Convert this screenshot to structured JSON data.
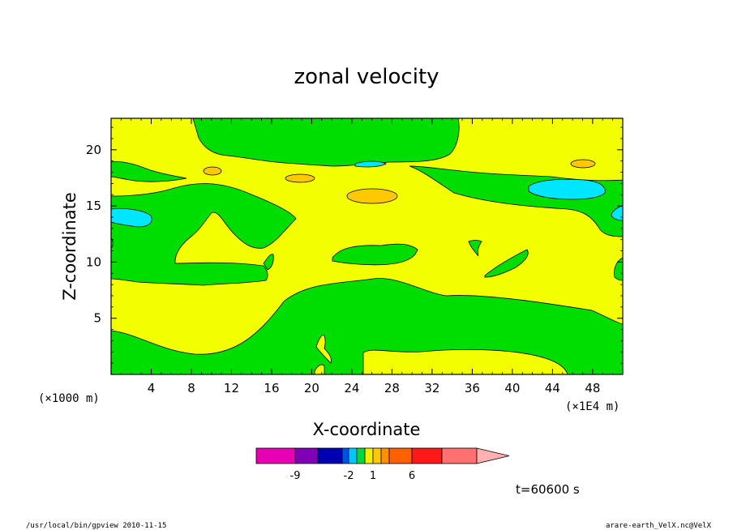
{
  "chart_data": {
    "type": "heatmap",
    "title": "zonal velocity",
    "xlabel": "X-coordinate",
    "ylabel": "Z-coordinate",
    "x_unit_label": "(×1E4 m)",
    "y_unit_label": "(×1000 m)",
    "xlim": [
      0,
      51
    ],
    "ylim": [
      0,
      22.8
    ],
    "x_ticks": [
      "4",
      "8",
      "12",
      "16",
      "20",
      "24",
      "28",
      "32",
      "36",
      "40",
      "44",
      "48"
    ],
    "x_tick_values": [
      4,
      8,
      12,
      16,
      20,
      24,
      28,
      32,
      36,
      40,
      44,
      48
    ],
    "y_ticks": [
      "5",
      "10",
      "15",
      "20"
    ],
    "y_tick_values": [
      5,
      10,
      15,
      20
    ],
    "colorbar": {
      "segments": [
        {
          "color": "#e800b4"
        },
        {
          "color": "#8000b8"
        },
        {
          "color": "#0000b0"
        },
        {
          "color": "#0050f0"
        },
        {
          "color": "#00c8ff"
        },
        {
          "color": "#00d840"
        },
        {
          "color": "#f0f000"
        },
        {
          "color": "#ffc800"
        },
        {
          "color": "#ff9000"
        },
        {
          "color": "#ff6000"
        },
        {
          "color": "#ff1818"
        },
        {
          "color": "#ff7070"
        },
        {
          "color": "#ffb0b0"
        }
      ],
      "tick_labels": [
        "-9",
        "-2",
        "1",
        "6"
      ]
    },
    "levels_colors": {
      "green": "#00dd00",
      "yellow": "#f3ff00",
      "cyan": "#00e6ff",
      "orange": "#ffc800"
    },
    "time_label": "t=60600 s"
  },
  "footer": {
    "left": "/usr/local/bin/gpview   2010-11-15",
    "right": "arare-earth_VelX.nc@VelX"
  }
}
